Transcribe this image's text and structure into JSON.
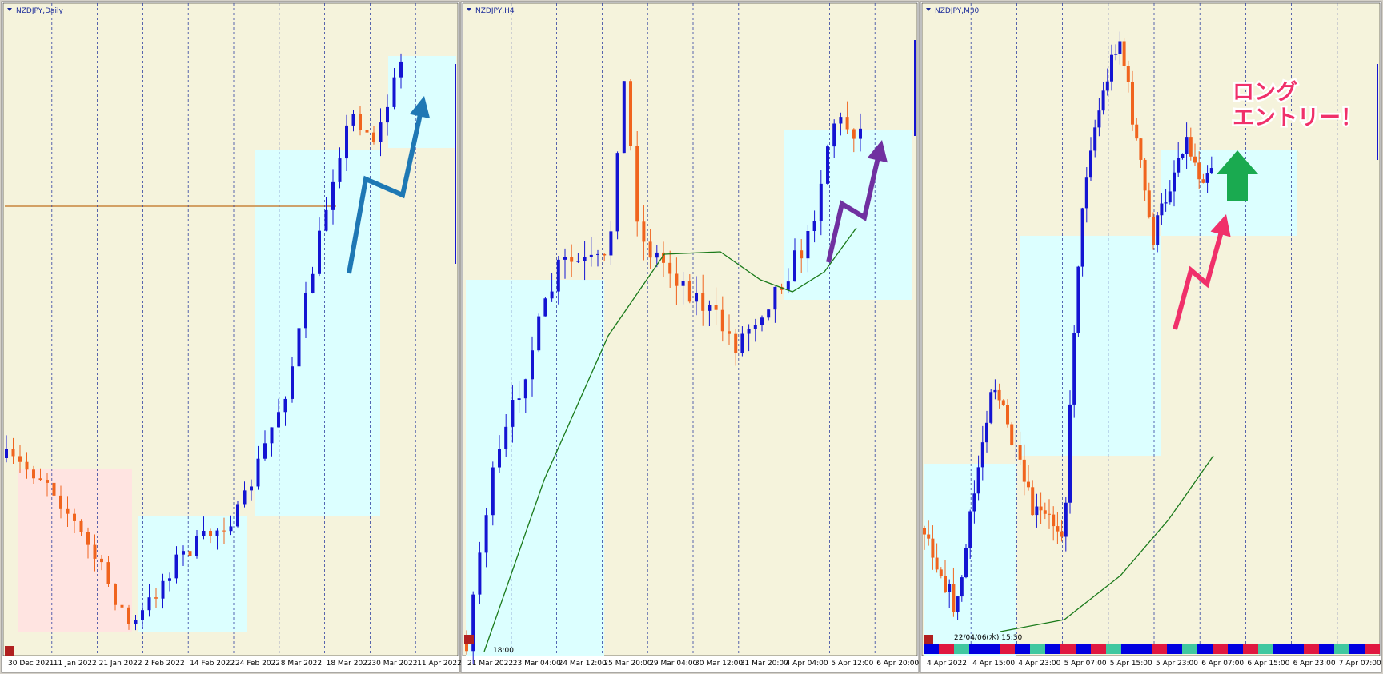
{
  "panels": [
    {
      "title": "NZDJPY,Daily",
      "time_labels": [
        "30 Dec 2021",
        "11 Jan 2022",
        "21 Jan 2022",
        "2 Feb 2022",
        "14 Feb 2022",
        "24 Feb 2022",
        "8 Mar 2022",
        "18 Mar 2022",
        "30 Mar 2022",
        "11 Apr 2022"
      ]
    },
    {
      "title": "NZDJPY,H4",
      "time_labels": [
        "21 Mar 2022",
        "23 Mar 04:00",
        "24 Mar 12:00",
        "25 Mar 20:00",
        "29 Mar 04:00",
        "30 Mar 12:00",
        "31 Mar 20:00",
        "4 Apr 04:00",
        "5 Apr 12:00",
        "6 Apr 20:00"
      ],
      "time_note": "18:00"
    },
    {
      "title": "NZDJPY,M30",
      "time_labels": [
        "4 Apr 2022",
        "4 Apr 15:00",
        "4 Apr 23:00",
        "5 Apr 07:00",
        "5 Apr 15:00",
        "5 Apr 23:00",
        "6 Apr 07:00",
        "6 Apr 15:00",
        "6 Apr 23:00",
        "7 Apr 07:00"
      ],
      "time_note": "22/04/06(水) 15:30",
      "annotation": [
        "ロング",
        "エントリー！"
      ]
    }
  ]
}
